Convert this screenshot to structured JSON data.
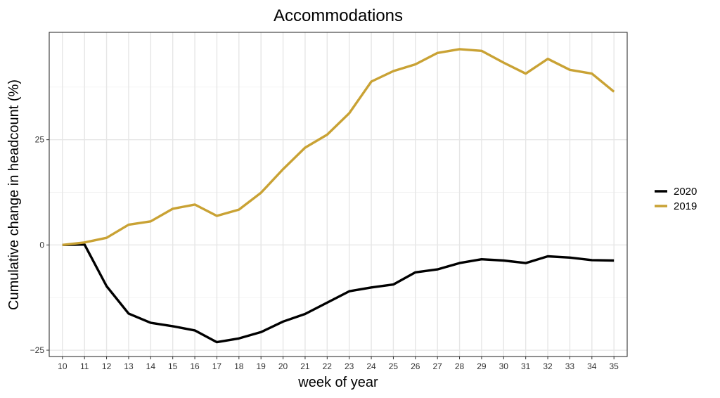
{
  "chart_data": {
    "type": "line",
    "title": "Accommodations",
    "xlabel": "week of year",
    "ylabel": "Cumulative change in headcount (%)",
    "x": [
      10,
      11,
      12,
      13,
      14,
      15,
      16,
      17,
      18,
      19,
      20,
      21,
      22,
      23,
      24,
      25,
      26,
      27,
      28,
      29,
      30,
      31,
      32,
      33,
      34,
      35
    ],
    "x_ticks": [
      "10",
      "11",
      "12",
      "13",
      "14",
      "15",
      "16",
      "17",
      "18",
      "19",
      "20",
      "21",
      "22",
      "23",
      "24",
      "25",
      "26",
      "27",
      "28",
      "29",
      "30",
      "31",
      "32",
      "33",
      "34",
      "35"
    ],
    "y_ticks": [
      {
        "value": 25,
        "label": "25"
      },
      {
        "value": 0,
        "label": "0"
      },
      {
        "value": -25,
        "label": "−25"
      }
    ],
    "xlim": [
      9.4,
      35.6
    ],
    "ylim": [
      -26.5,
      50.5
    ],
    "grid": true,
    "legend_position": "right",
    "series": [
      {
        "name": "2020",
        "color": "#000000",
        "values": [
          0,
          0.1,
          -9.8,
          -16.3,
          -18.5,
          -19.3,
          -20.3,
          -23.1,
          -22.2,
          -20.7,
          -18.2,
          -16.4,
          -13.7,
          -11,
          -10.1,
          -9.4,
          -6.5,
          -5.8,
          -4.3,
          -3.4,
          -3.7,
          -4.3,
          -2.7,
          -3.0,
          -3.6,
          -3.7
        ]
      },
      {
        "name": "2019",
        "color": "#c9a234",
        "values": [
          0,
          0.6,
          1.7,
          4.8,
          5.6,
          8.6,
          9.6,
          6.9,
          8.4,
          12.4,
          18,
          23.1,
          26.2,
          31.3,
          38.8,
          41.3,
          42.9,
          45.6,
          46.5,
          46.1,
          43.3,
          40.7,
          44.2,
          41.6,
          40.7,
          36.4
        ]
      }
    ]
  }
}
